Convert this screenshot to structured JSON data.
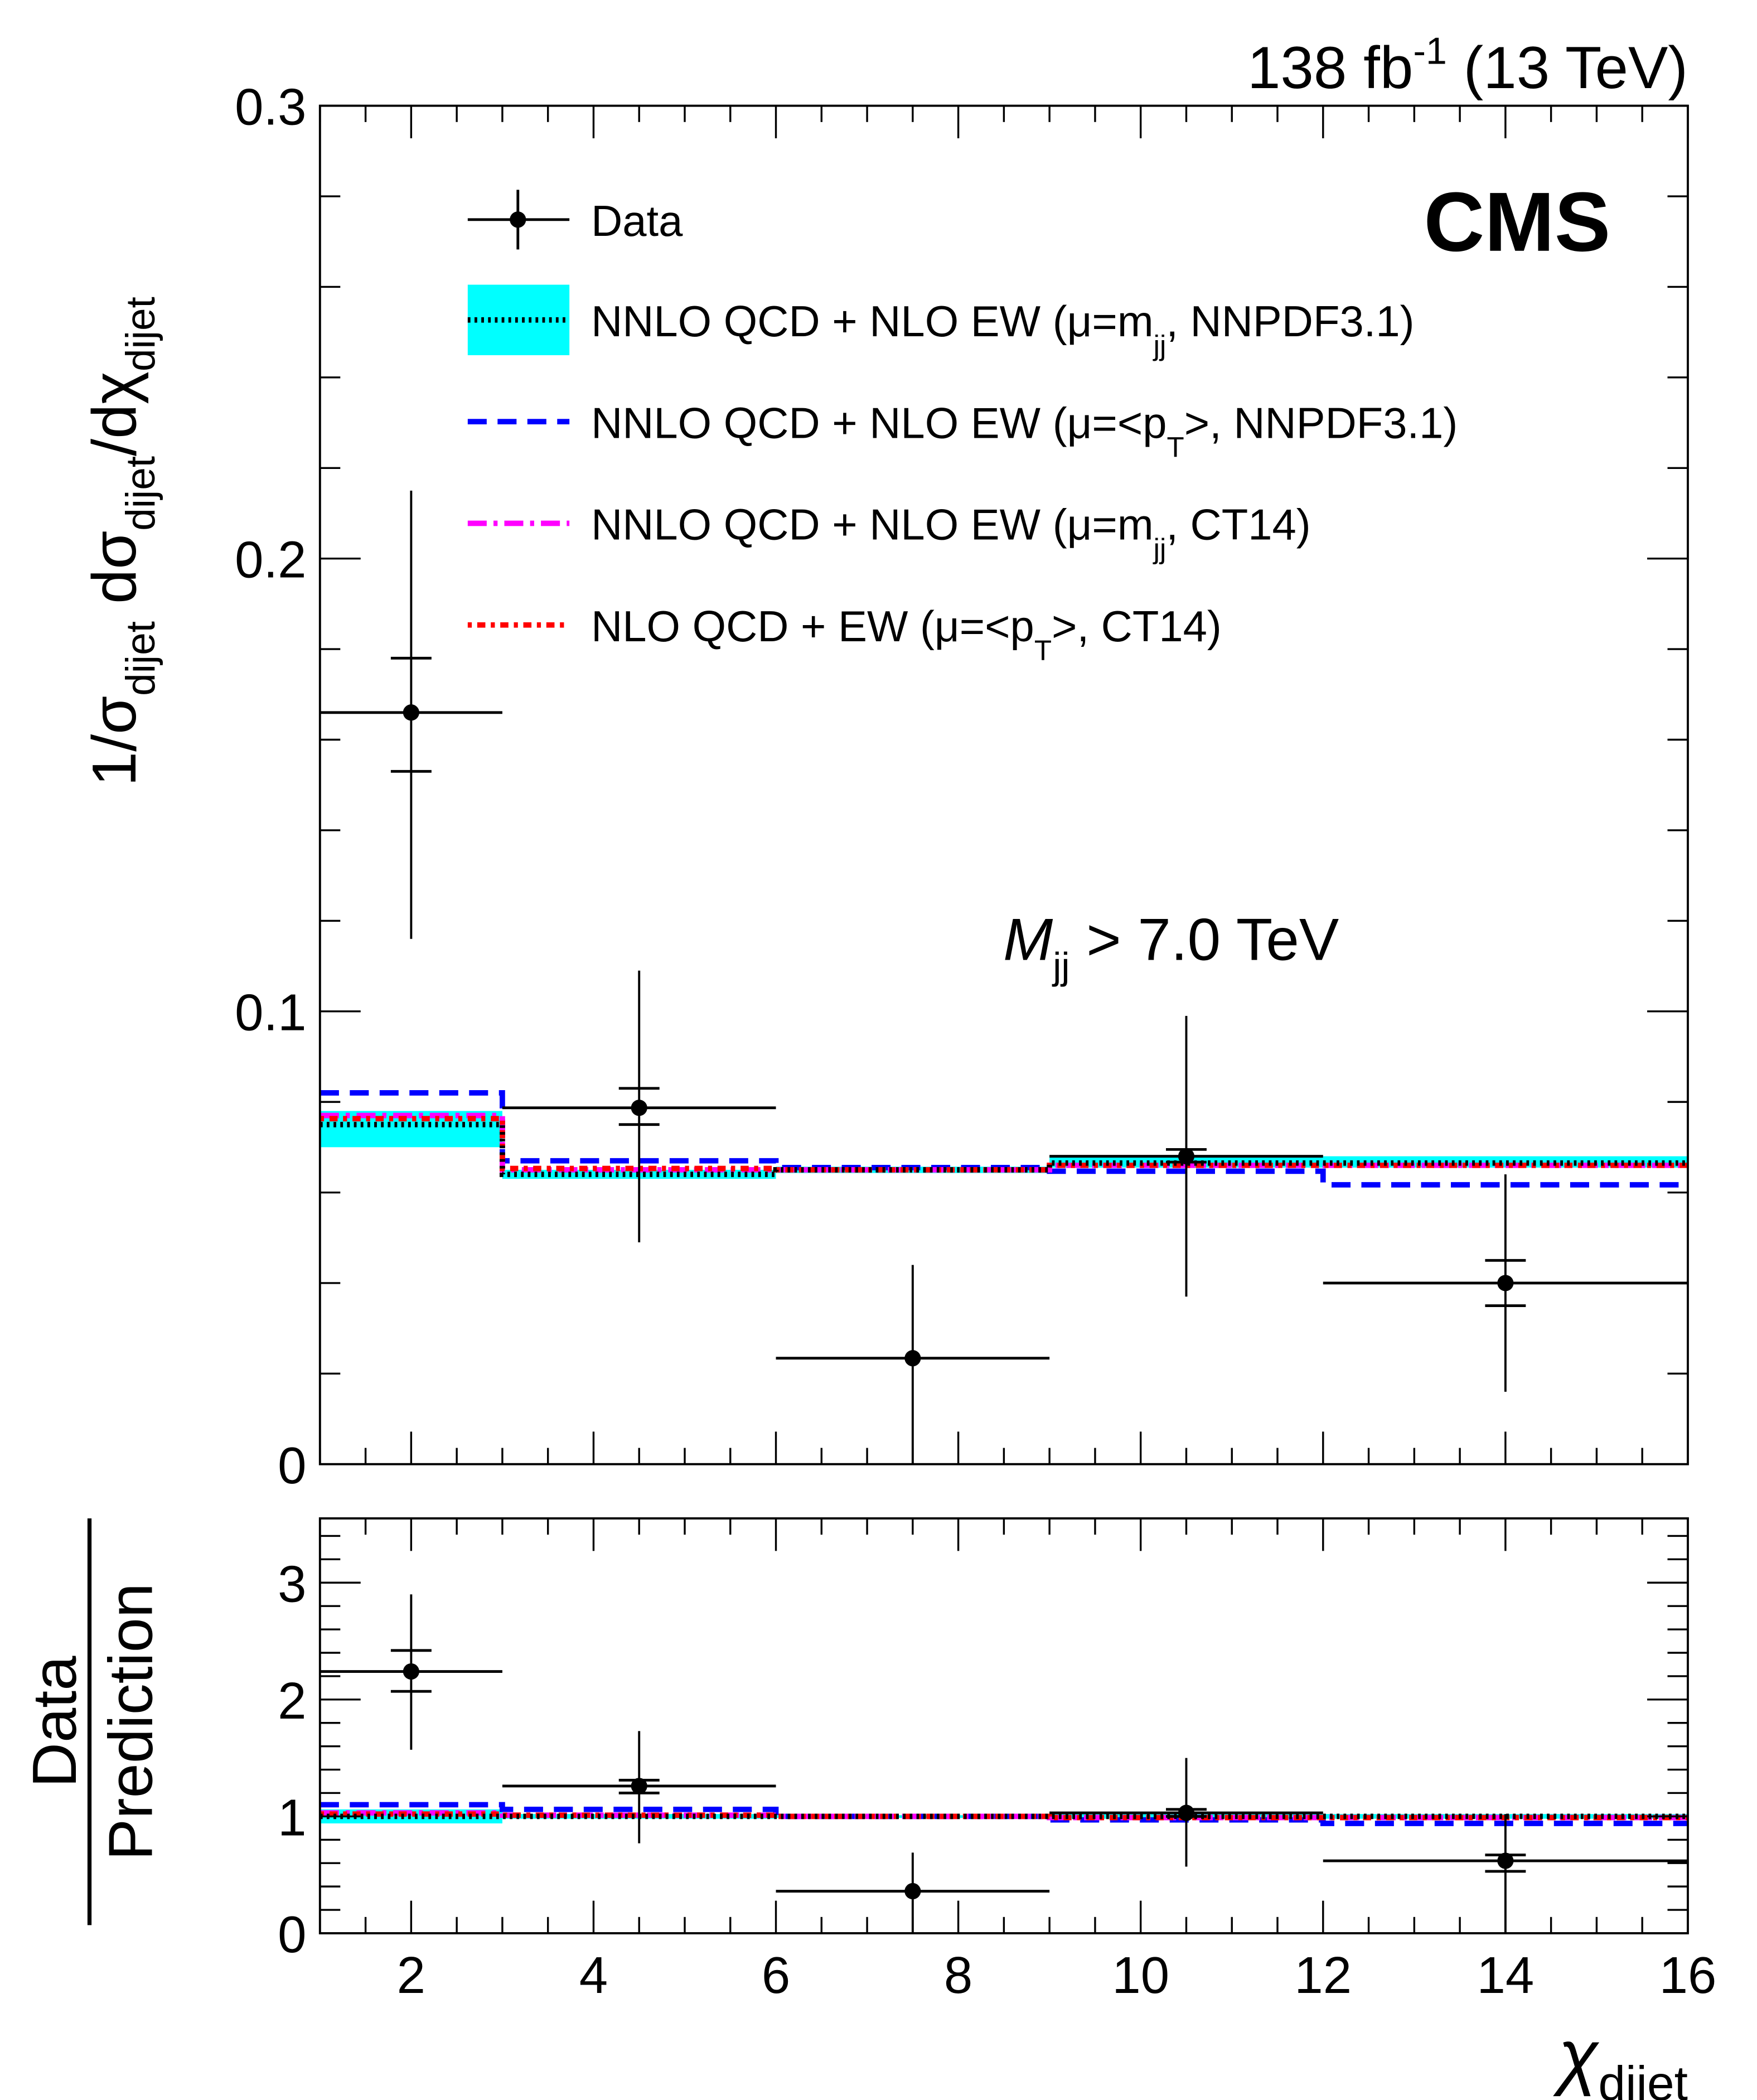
{
  "header": {
    "lumi": "138 fb",
    "lumi_sup": "-1",
    "energy": " (13 TeV)",
    "experiment": "CMS"
  },
  "annotation": {
    "prefix": "M",
    "sub": "jj",
    "suffix": " > 7.0 TeV"
  },
  "chart_data": [
    {
      "type": "line",
      "panel": "main",
      "ylabel": {
        "pre": "1/σ",
        "sub1": "dijet",
        "mid": " dσ",
        "sub2": "dijet",
        "post": "/dχ",
        "sub3": "dijet"
      },
      "xlim": [
        1,
        16
      ],
      "ylim": [
        0,
        0.3
      ],
      "yticks": [
        "0",
        "0.1",
        "0.2",
        "0.3"
      ],
      "bins": [
        [
          1,
          3
        ],
        [
          3,
          6
        ],
        [
          6,
          9
        ],
        [
          9,
          12
        ],
        [
          12,
          16
        ]
      ],
      "data": {
        "name": "Data",
        "x": [
          2,
          4.5,
          7.5,
          10.5,
          14
        ],
        "y": [
          0.166,
          0.0787,
          0.0234,
          0.068,
          0.04
        ],
        "stat_up": [
          0.178,
          0.083,
          0.0234,
          0.0695,
          0.045
        ],
        "stat_down": [
          0.153,
          0.075,
          0.0234,
          0.0667,
          0.035
        ],
        "tot_up": [
          0.215,
          0.109,
          0.044,
          0.099,
          0.064
        ],
        "tot_down": [
          0.116,
          0.049,
          0.0,
          0.037,
          0.016
        ]
      },
      "band": {
        "lo": [
          0.07,
          0.063,
          0.0643,
          0.0655,
          0.0655
        ],
        "hi": [
          0.078,
          0.065,
          0.0657,
          0.068,
          0.068
        ]
      },
      "series": [
        {
          "name": "NNLO QCD + NLO EW (μ=m_jj, NNPDF3.1)",
          "values": [
            0.075,
            0.064,
            0.065,
            0.0665,
            0.0665
          ]
        },
        {
          "name": "NNLO QCD + NLO EW (μ=<p_T>, NNPDF3.1)",
          "values": [
            0.082,
            0.067,
            0.0655,
            0.0647,
            0.0617
          ]
        },
        {
          "name": "NNLO QCD + NLO EW (μ=m_jj, CT14)",
          "values": [
            0.077,
            0.065,
            0.065,
            0.066,
            0.066
          ]
        },
        {
          "name": "NLO QCD + EW (μ=<p_T>, CT14)",
          "values": [
            0.0763,
            0.0653,
            0.065,
            0.066,
            0.066
          ]
        }
      ]
    },
    {
      "type": "line",
      "panel": "ratio",
      "ylabel": {
        "num": "Data",
        "den": "Prediction"
      },
      "xlabel": {
        "main": "χ",
        "sub": "dijet"
      },
      "xlim": [
        1,
        16
      ],
      "ylim": [
        0,
        3.55
      ],
      "xticks": [
        "2",
        "4",
        "6",
        "8",
        "10",
        "12",
        "14",
        "16"
      ],
      "yticks": [
        "0",
        "1",
        "2",
        "3"
      ],
      "data": {
        "x": [
          2,
          4.5,
          7.5,
          10.5,
          14
        ],
        "y": [
          2.24,
          1.26,
          0.36,
          1.03,
          0.62
        ],
        "stat_up": [
          2.42,
          1.31,
          0.36,
          1.06,
          0.67
        ],
        "stat_down": [
          2.07,
          1.2,
          0.36,
          1.0,
          0.53
        ],
        "tot_up": [
          2.9,
          1.73,
          0.69,
          1.5,
          1.02
        ],
        "tot_down": [
          1.57,
          0.77,
          0.0,
          0.57,
          0.0
        ]
      },
      "band": {
        "lo": [
          0.94,
          0.98,
          0.99,
          0.98,
          0.98
        ],
        "hi": [
          1.06,
          1.02,
          1.01,
          1.02,
          1.02
        ]
      },
      "series": [
        {
          "name": "NNLO mjj NNPDF3.1",
          "values": [
            1,
            1,
            1,
            1,
            1
          ]
        },
        {
          "name": "NNLO pT NNPDF3.1",
          "values": [
            1.1,
            1.06,
            1.0,
            0.97,
            0.94
          ]
        },
        {
          "name": "NNLO mjj CT14",
          "values": [
            1.03,
            1.01,
            1.0,
            0.99,
            0.99
          ]
        },
        {
          "name": "NLO pT CT14",
          "values": [
            1.02,
            1.01,
            1.0,
            0.99,
            0.99
          ]
        }
      ]
    }
  ],
  "legend": {
    "data": "Data",
    "items": [
      {
        "pre": "NNLO QCD + NLO EW (μ=m",
        "sub": "jj",
        "post": ", NNPDF3.1)"
      },
      {
        "pre": "NNLO QCD + NLO EW (μ=<p",
        "sub": "T",
        "post": ">, NNPDF3.1)"
      },
      {
        "pre": "NNLO QCD + NLO EW (μ=m",
        "sub": "jj",
        "post": ", CT14)"
      },
      {
        "pre": "NLO QCD + EW (μ=<p",
        "sub": "T",
        "post": ">, CT14)"
      }
    ]
  },
  "colors": {
    "band": "#00ffff",
    "s0": "#000000",
    "s1": "#0000ff",
    "s2": "#ff00ff",
    "s3": "#ff0000"
  }
}
